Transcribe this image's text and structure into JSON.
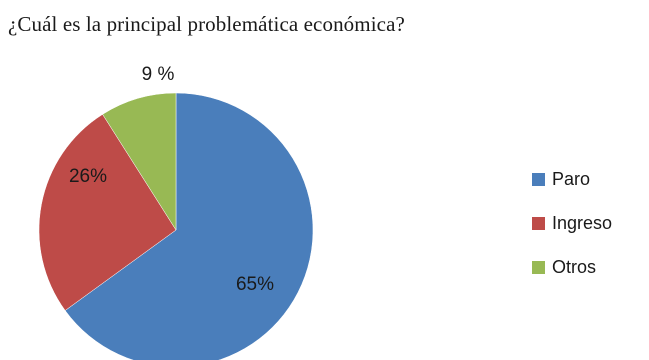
{
  "title": "¿Cuál es la principal problemática económica?",
  "chart_data": {
    "type": "pie",
    "title": "¿Cuál es la principal problemática económica?",
    "slices": [
      {
        "name": "Paro",
        "value": 65,
        "label": "65%",
        "color": "#4a7ebb"
      },
      {
        "name": "Ingreso",
        "value": 26,
        "label": "26%",
        "color": "#be4b48"
      },
      {
        "name": "Otros",
        "value": 9,
        "label": "9 %",
        "color": "#98b954"
      }
    ],
    "legend_position": "right"
  }
}
